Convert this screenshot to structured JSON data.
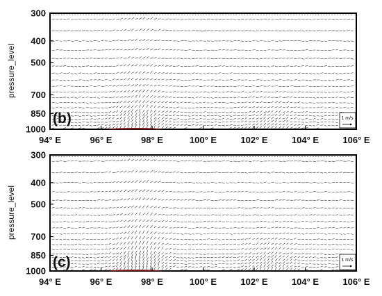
{
  "chart_data": [
    {
      "type": "vector",
      "panel_label": "(b)",
      "ylabel": "pressure_level",
      "y_ticks": [
        "300",
        "400",
        "500",
        "700",
        "850",
        "1000"
      ],
      "y_tick_values": [
        300,
        400,
        500,
        700,
        850,
        1000
      ],
      "x_ticks": [
        "94° E",
        "96° E",
        "98° E",
        "100° E",
        "102° E",
        "104° E",
        "106° E"
      ],
      "x_tick_values": [
        94,
        96,
        98,
        100,
        102,
        104,
        106
      ],
      "xlim": [
        94,
        106
      ],
      "ylim": [
        1000,
        300
      ],
      "y_scale": "log",
      "legend": {
        "label": "1 m/s",
        "placement": "bottom-right"
      },
      "terrain": {
        "x": [
          96.3,
          98.4
        ],
        "peak_level": 985,
        "color": "#7a1a1a"
      }
    },
    {
      "type": "vector",
      "panel_label": "(c)",
      "ylabel": "pressure_level",
      "y_ticks": [
        "300",
        "400",
        "500",
        "700",
        "850",
        "1000"
      ],
      "y_tick_values": [
        300,
        400,
        500,
        700,
        850,
        1000
      ],
      "x_ticks": [
        "94° E",
        "96° E",
        "98° E",
        "100° E",
        "102° E",
        "104° E",
        "106° E"
      ],
      "x_tick_values": [
        94,
        96,
        98,
        100,
        102,
        104,
        106
      ],
      "xlim": [
        94,
        106
      ],
      "ylim": [
        1000,
        300
      ],
      "y_scale": "log",
      "legend": {
        "label": "1 m/s",
        "placement": "bottom-right"
      },
      "terrain": {
        "x": [
          96.3,
          98.4
        ],
        "peak_level": 985,
        "color": "#7a1a1a"
      }
    }
  ]
}
